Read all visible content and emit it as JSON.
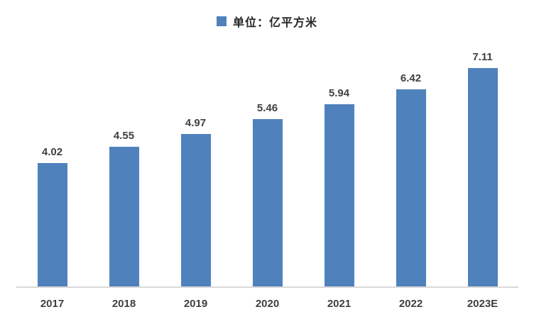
{
  "chart_data": {
    "type": "bar",
    "categories": [
      "2017",
      "2018",
      "2019",
      "2020",
      "2021",
      "2022",
      "2023E"
    ],
    "values": [
      4.02,
      4.55,
      4.97,
      5.46,
      5.94,
      6.42,
      7.11
    ],
    "value_labels": [
      "4.02",
      "4.55",
      "4.97",
      "5.46",
      "5.94",
      "6.42",
      "7.11"
    ],
    "legend": "单位：亿平方米",
    "title": "",
    "xlabel": "",
    "ylabel": "",
    "ylim": [
      0,
      8
    ],
    "grid": false,
    "legend_position": "top-center",
    "colors": {
      "bar": "#4F81BD",
      "axis_line": "#D9D9D9",
      "value_label": "#404040",
      "category_label": "#404040",
      "legend_text": "#262626",
      "background": "#ffffff"
    }
  }
}
